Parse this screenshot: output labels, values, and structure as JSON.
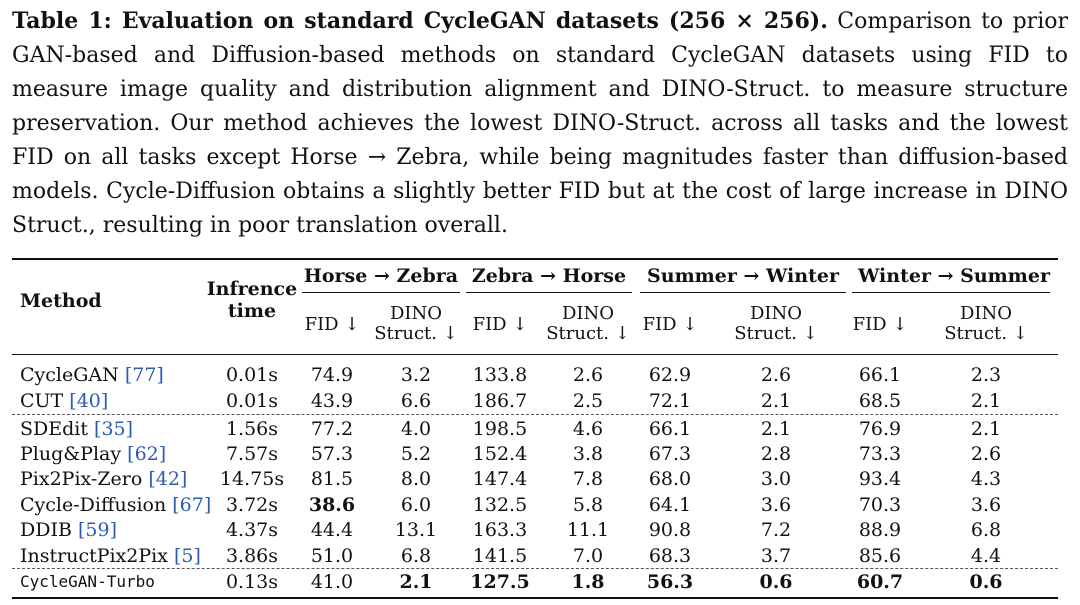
{
  "caption": {
    "label": "Table 1: Evaluation on standard CycleGAN datasets (256 × 256).",
    "text": "Comparison to prior GAN-based and Diffusion-based methods on standard CycleGAN datasets using FID to measure image quality and distribution alignment and DINO-Struct. to measure structure preservation. Our method achieves the lowest DINO-Struct. across all tasks and the lowest FID on all tasks except Horse → Zebra, while being magnitudes faster than diffusion-based models. Cycle-Diffusion obtains a slightly better FID but at the cost of large increase in DINO Struct., resulting in poor translation overall."
  },
  "table": {
    "col_method": "Method",
    "col_time": "Infrence time",
    "groups": [
      "Horse → Zebra",
      "Zebra → Horse",
      "Summer → Winter",
      "Winter → Summer"
    ],
    "sub_fid": "FID ↓",
    "sub_dino_1": "DINO",
    "sub_dino_2": "Struct. ↓",
    "rows": [
      {
        "name": "CycleGAN",
        "ref": "[77]",
        "time": "0.01s",
        "v": [
          "74.9",
          "3.2",
          "133.8",
          "2.6",
          "62.9",
          "2.6",
          "66.1",
          "2.3"
        ]
      },
      {
        "name": "CUT",
        "ref": "[40]",
        "time": "0.01s",
        "v": [
          "43.9",
          "6.6",
          "186.7",
          "2.5",
          "72.1",
          "2.1",
          "68.5",
          "2.1"
        ]
      },
      {
        "name": "SDEdit",
        "ref": "[35]",
        "time": "1.56s",
        "v": [
          "77.2",
          "4.0",
          "198.5",
          "4.6",
          "66.1",
          "2.1",
          "76.9",
          "2.1"
        ]
      },
      {
        "name": "Plug&Play",
        "ref": "[62]",
        "time": "7.57s",
        "v": [
          "57.3",
          "5.2",
          "152.4",
          "3.8",
          "67.3",
          "2.8",
          "73.3",
          "2.6"
        ]
      },
      {
        "name": "Pix2Pix-Zero",
        "ref": "[42]",
        "time": "14.75s",
        "v": [
          "81.5",
          "8.0",
          "147.4",
          "7.8",
          "68.0",
          "3.0",
          "93.4",
          "4.3"
        ]
      },
      {
        "name": "Cycle-Diffusion",
        "ref": "[67]",
        "time": "3.72s",
        "v": [
          "38.6",
          "6.0",
          "132.5",
          "5.8",
          "64.1",
          "3.6",
          "70.3",
          "3.6"
        ]
      },
      {
        "name": "DDIB",
        "ref": "[59]",
        "time": "4.37s",
        "v": [
          "44.4",
          "13.1",
          "163.3",
          "11.1",
          "90.8",
          "7.2",
          "88.9",
          "6.8"
        ]
      },
      {
        "name": "InstructPix2Pix",
        "ref": "[5]",
        "time": "3.86s",
        "v": [
          "51.0",
          "6.8",
          "141.5",
          "7.0",
          "68.3",
          "3.7",
          "85.6",
          "4.4"
        ]
      },
      {
        "name": "CycleGAN-Turbo",
        "ref": "",
        "time": "0.13s",
        "v": [
          "41.0",
          "2.1",
          "127.5",
          "1.8",
          "56.3",
          "0.6",
          "60.7",
          "0.6"
        ]
      }
    ]
  }
}
